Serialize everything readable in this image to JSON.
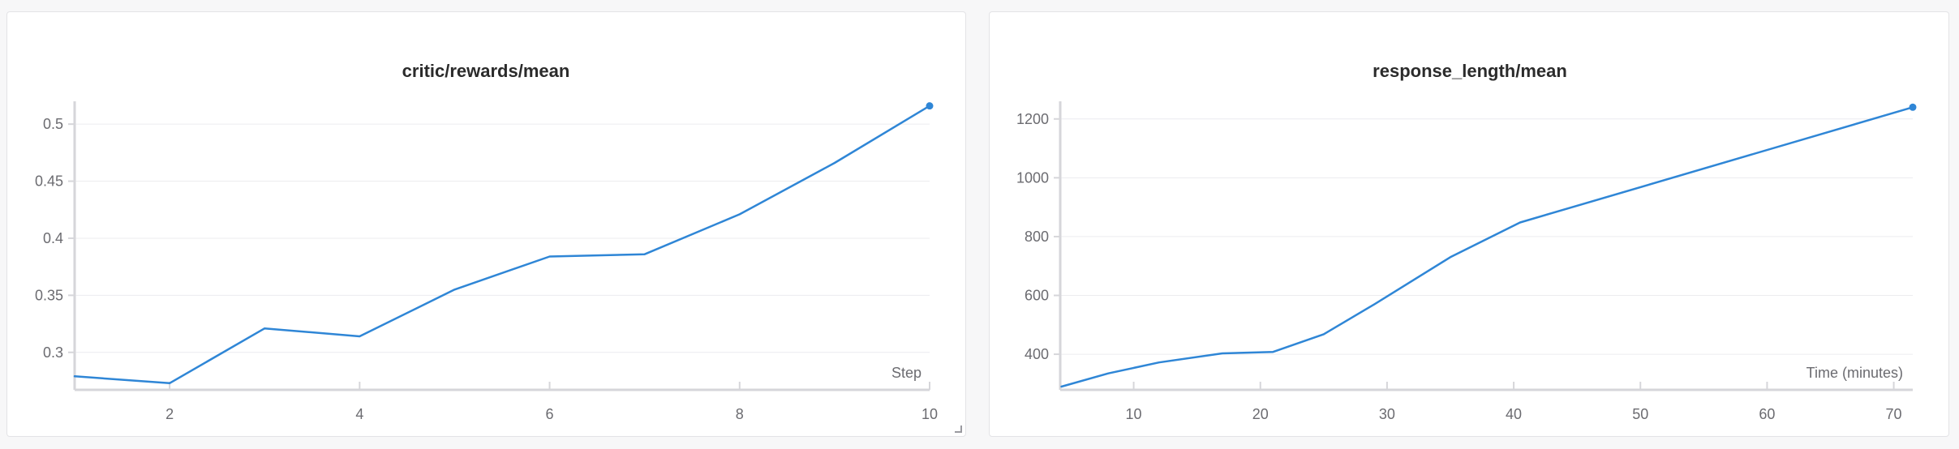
{
  "chart_data": [
    {
      "type": "line",
      "title": "critic/rewards/mean",
      "xlabel": "Step",
      "ylabel": "",
      "xlim": [
        1,
        10
      ],
      "ylim": [
        0.27,
        0.52
      ],
      "xticks": [
        2,
        4,
        6,
        8,
        10
      ],
      "yticks": [
        0.3,
        0.35,
        0.4,
        0.45,
        0.5
      ],
      "ytick_labels": [
        "0.3",
        "0.35",
        "0.4",
        "0.45",
        "0.5"
      ],
      "grid": true,
      "color": "#2f86d6",
      "series": [
        {
          "x": [
            1,
            2,
            3,
            4,
            5,
            6,
            7,
            8,
            9,
            10
          ],
          "values": [
            0.279,
            0.273,
            0.321,
            0.314,
            0.355,
            0.384,
            0.386,
            0.421,
            0.466,
            0.516
          ]
        }
      ]
    },
    {
      "type": "line",
      "title": "response_length/mean",
      "xlabel": "Time (minutes)",
      "ylabel": "",
      "xlim": [
        4.2,
        71.5
      ],
      "ylim": [
        290,
        1260
      ],
      "xticks": [
        10,
        20,
        30,
        40,
        50,
        60,
        70
      ],
      "yticks": [
        400,
        600,
        800,
        1000,
        1200
      ],
      "ytick_labels": [
        "400",
        "600",
        "800",
        "1000",
        "1200"
      ],
      "grid": true,
      "color": "#2f86d6",
      "series": [
        {
          "x": [
            4.3,
            8,
            12,
            17,
            21,
            25,
            29,
            35,
            40.5,
            71.5
          ],
          "values": [
            290,
            335,
            372,
            403,
            408,
            468,
            570,
            730,
            848,
            1240
          ]
        }
      ]
    }
  ]
}
